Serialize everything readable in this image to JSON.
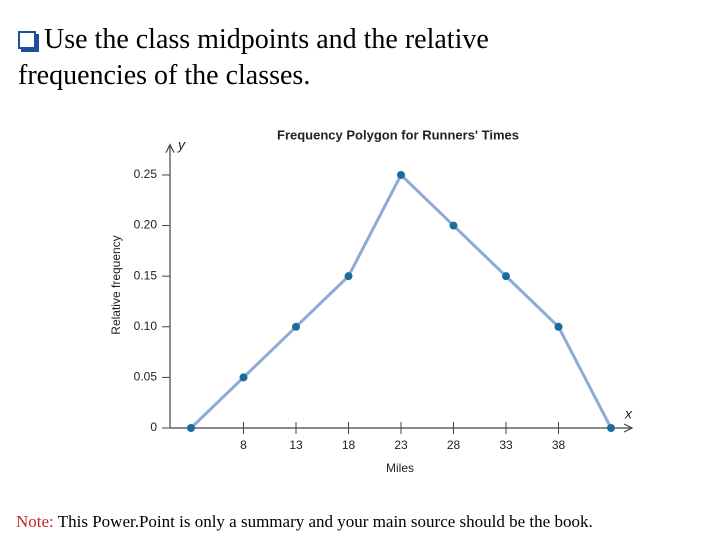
{
  "heading": "Use the class midpoints and the relative frequencies of the classes.",
  "note": {
    "label": "Note:",
    "text": "This Power.Point is only a summary and your main source should be the book."
  },
  "chart_data": {
    "type": "line",
    "title": "Frequency Polygon for Runners' Times",
    "x_label": "Miles",
    "y_label": "Relative frequency",
    "x_axis_symbol": "x",
    "y_axis_symbol": "y",
    "x": [
      3,
      8,
      13,
      18,
      23,
      28,
      33,
      38,
      43
    ],
    "values": [
      0,
      0.05,
      0.1,
      0.15,
      0.25,
      0.2,
      0.15,
      0.1,
      0
    ],
    "line_color": "#8eaad6",
    "marker_color": "#1b6c9e",
    "xlim": [
      1,
      45
    ],
    "ylim": [
      0,
      0.28
    ],
    "xticks": [
      8,
      13,
      18,
      23,
      28,
      33,
      38
    ],
    "yticks": [
      0,
      0.05,
      {
        "value": 0.1,
        "label": "0.10"
      },
      0.15,
      {
        "value": 0.2,
        "label": "0.20"
      },
      0.25
    ]
  }
}
